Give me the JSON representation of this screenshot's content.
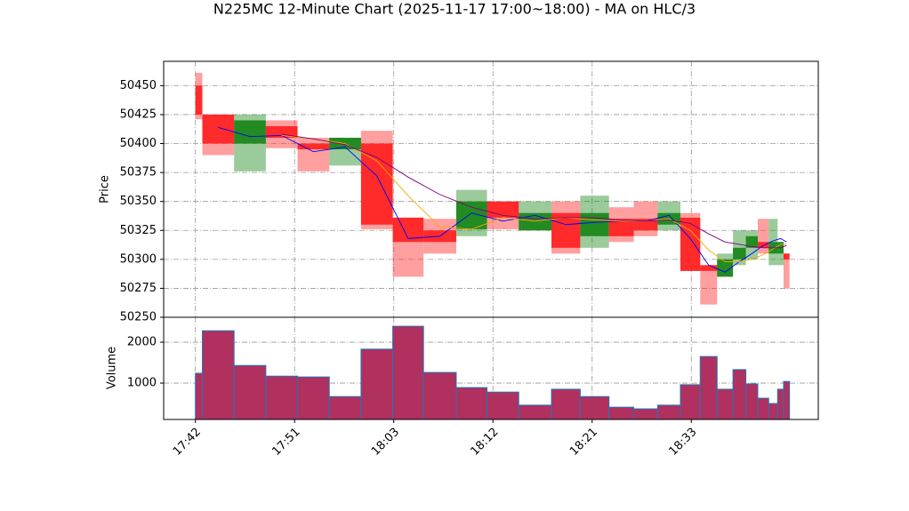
{
  "chart_data": {
    "type": "candlestick",
    "title": "N225MC 12-Minute Chart (2025-11-17 17:00~18:00) - MA on HLC/3",
    "ylabel": "Price",
    "x": [
      0,
      0.07,
      0.39,
      0.71,
      1.03,
      1.35,
      1.67,
      1.99,
      2.3,
      2.63,
      2.94,
      3.26,
      3.59,
      3.88,
      4.17,
      4.42,
      4.66,
      4.89,
      5.09,
      5.26,
      5.42,
      5.55,
      5.67,
      5.78,
      5.87,
      5.93
    ],
    "open": [
      50450,
      50425,
      50400,
      50415,
      50400,
      50395,
      50400,
      50336,
      50325,
      50326,
      50350,
      50325,
      50340,
      50320,
      50335,
      50335,
      50330,
      50336,
      50295,
      50285,
      50300,
      50310,
      50315,
      50305,
      50305,
      50305
    ],
    "high": [
      50461,
      50425,
      50425,
      50420,
      50405,
      50405,
      50411,
      50336,
      50335,
      50360,
      50350,
      50350,
      50350,
      50355,
      50345,
      50350,
      50350,
      50340,
      50295,
      50305,
      50325,
      50325,
      50335,
      50335,
      50315,
      50305
    ],
    "low": [
      50421,
      50390,
      50376,
      50396,
      50376,
      50381,
      50326,
      50285,
      50305,
      50320,
      50326,
      50325,
      50305,
      50310,
      50315,
      50320,
      50325,
      50290,
      50261,
      50285,
      50295,
      50300,
      50305,
      50295,
      50295,
      50275
    ],
    "close": [
      50425,
      50400,
      50420,
      50405,
      50395,
      50405,
      50330,
      50315,
      50315,
      50350,
      50336,
      50340,
      50310,
      50340,
      50320,
      50325,
      50340,
      50290,
      50290,
      50300,
      50310,
      50320,
      50310,
      50315,
      50315,
      50300
    ],
    "up_color": "#228b22",
    "down_color": "#ff2a2a",
    "ma": [
      {
        "color": "#0000ff",
        "values": [
          null,
          50414,
          50406,
          50407,
          50393,
          50397,
          50372,
          50318,
          50320,
          50340,
          50333,
          50338,
          50330,
          50332,
          50333,
          50333,
          50338,
          50318,
          50295,
          50289,
          50298,
          50305,
          50312,
          50316,
          50318,
          50315
        ]
      },
      {
        "color": "#ffa500",
        "values": [
          null,
          null,
          null,
          50407,
          50404,
          50400,
          50385,
          50355,
          50328,
          50326,
          50336,
          50333,
          50336,
          50334,
          50333,
          50333,
          50335,
          50325,
          50308,
          50298,
          50298,
          50300,
          50304,
          50309,
          50313,
          50313
        ]
      },
      {
        "color": "#800080",
        "values": [
          null,
          null,
          null,
          50408,
          50404,
          50399,
          50388,
          50371,
          50356,
          50345,
          50338,
          50335,
          50336,
          50336,
          50334,
          50333,
          50334,
          50331,
          50322,
          50315,
          50313,
          50311,
          50310,
          50310,
          50310,
          50312
        ]
      }
    ],
    "xlim": [
      -0.32,
      6.28
    ],
    "xticks": [
      {
        "value": 0,
        "label": "17:42"
      },
      {
        "value": 1,
        "label": "17:51"
      },
      {
        "value": 2,
        "label": "18:03"
      },
      {
        "value": 3,
        "label": "18:12"
      },
      {
        "value": 4,
        "label": "18:21"
      },
      {
        "value": 5,
        "label": "18:33"
      }
    ],
    "ylim": [
      50250,
      50471
    ],
    "yticks": [
      50250,
      50275,
      50300,
      50325,
      50350,
      50375,
      50400,
      50425,
      50450
    ],
    "grid": true,
    "volume": {
      "ylabel": "Volume",
      "values": [
        1240,
        2280,
        1430,
        1170,
        1150,
        670,
        1830,
        2390,
        1260,
        890,
        780,
        460,
        850,
        670,
        410,
        370,
        460,
        960,
        1650,
        850,
        1330,
        980,
        630,
        500,
        850,
        1040
      ],
      "color": "#b03060",
      "edge_color": "#1f77b4",
      "ylim": [
        110,
        2610
      ],
      "yticks": [
        1000,
        2000
      ]
    }
  }
}
